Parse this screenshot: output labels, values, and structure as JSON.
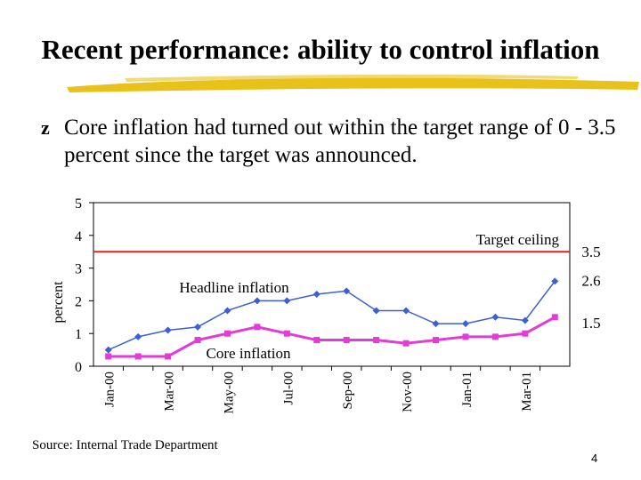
{
  "slide": {
    "title": "Recent performance: ability to control inflation",
    "bullet_icon": "z-bullet-icon",
    "bullet_text": "Core inflation had turned out within the target range of 0 - 3.5 percent since the target was announced.",
    "source": "Source: Internal Trade Department",
    "page_number": "4"
  },
  "colors": {
    "title_underline": "#e8c21a",
    "target_line": "#e02020",
    "headline_series": "#3b5fd6",
    "core_series": "#e23bd6"
  },
  "chart_data": {
    "type": "line",
    "ylabel": "percent",
    "ylim": [
      0,
      5
    ],
    "yticks": [
      "0",
      "1",
      "2",
      "3",
      "4",
      "5"
    ],
    "xtick_labels": [
      "Jan-00",
      "Mar-00",
      "May-00",
      "Jul-00",
      "Sep-00",
      "Nov-00",
      "Jan-01",
      "Mar-01"
    ],
    "x": [
      "Jan-00",
      "Feb-00",
      "Mar-00",
      "Apr-00",
      "May-00",
      "Jun-00",
      "Jul-00",
      "Aug-00",
      "Sep-00",
      "Oct-00",
      "Nov-00",
      "Dec-00",
      "Jan-01",
      "Feb-01",
      "Mar-01",
      "Apr-01"
    ],
    "series": [
      {
        "name": "Headline inflation",
        "values": [
          0.5,
          0.9,
          1.1,
          1.2,
          1.7,
          2.0,
          2.0,
          2.2,
          2.3,
          1.7,
          1.7,
          1.3,
          1.3,
          1.5,
          1.4,
          2.6
        ]
      },
      {
        "name": "Core inflation",
        "values": [
          0.3,
          0.3,
          0.3,
          0.8,
          1.0,
          1.2,
          1.0,
          0.8,
          0.8,
          0.8,
          0.7,
          0.8,
          0.9,
          0.9,
          1.0,
          1.5
        ]
      }
    ],
    "reference_line": {
      "name": "Target ceiling",
      "value": 3.5,
      "label": "3.5"
    },
    "end_labels": [
      "2.6",
      "1.5"
    ],
    "grid": false,
    "legend": "none"
  }
}
